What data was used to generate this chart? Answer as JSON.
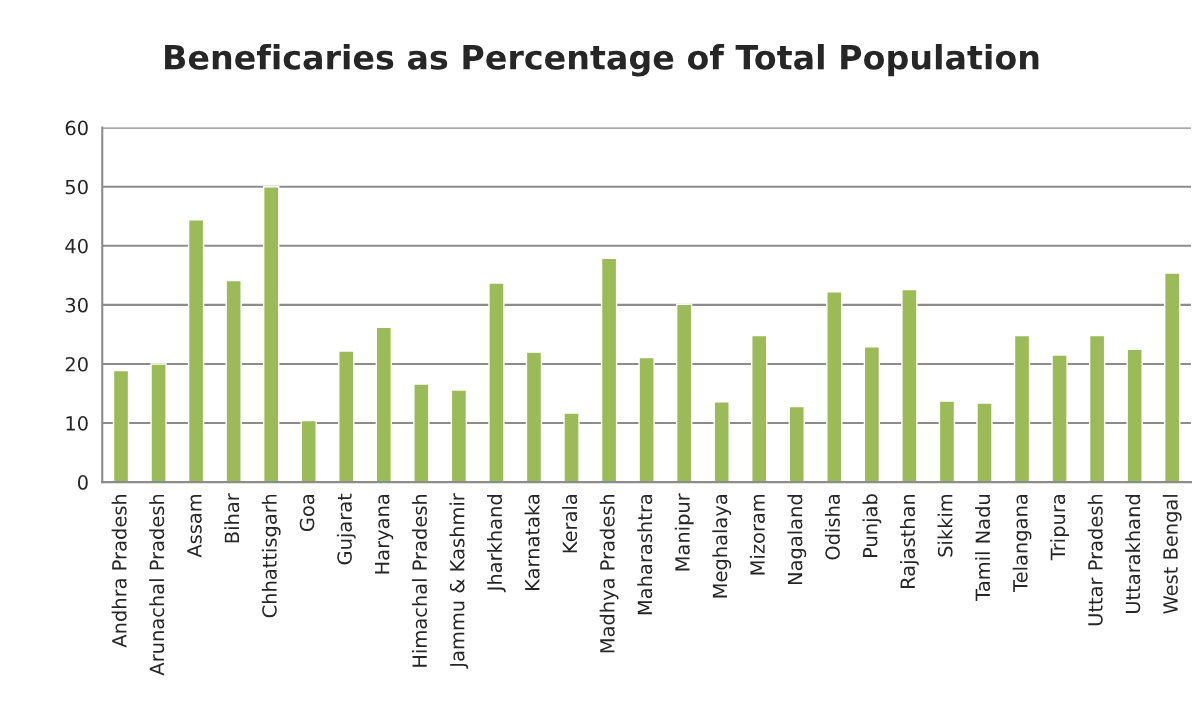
{
  "chart_data": {
    "type": "bar",
    "title": "Beneficaries as Percentage of Total Population",
    "categories": [
      "Andhra Pradesh",
      "Arunachal Pradesh",
      "Assam",
      "Bihar",
      "Chhattisgarh",
      "Goa",
      "Gujarat",
      "Haryana",
      "Himachal Pradesh",
      "Jammu & Kashmir",
      "Jharkhand",
      "Karnataka",
      "Kerala",
      "Madhya Pradesh",
      "Maharashtra",
      "Manipur",
      "Meghalaya",
      "Mizoram",
      "Nagaland",
      "Odisha",
      "Punjab",
      "Rajasthan",
      "Sikkim",
      "Tamil Nadu",
      "Telangana",
      "Tripura",
      "Uttar Pradesh",
      "Uttarakhand",
      "West Bengal"
    ],
    "values": [
      18.9,
      20.0,
      44.4,
      34.1,
      50.0,
      10.4,
      22.2,
      26.2,
      16.6,
      15.6,
      33.7,
      22.0,
      11.7,
      37.9,
      21.1,
      30.1,
      13.6,
      24.8,
      12.8,
      32.2,
      22.9,
      32.6,
      13.7,
      13.4,
      24.8,
      21.5,
      24.8,
      22.5,
      35.4
    ],
    "color": "#9bbb59",
    "ylim": [
      0,
      60
    ],
    "yticks": [
      0,
      10,
      20,
      30,
      40,
      50,
      60
    ],
    "grid": "y",
    "legend": false
  }
}
